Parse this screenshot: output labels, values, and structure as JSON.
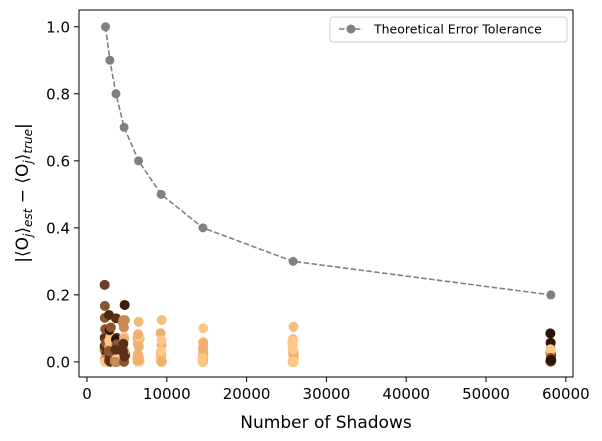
{
  "chart_data": {
    "type": "scatter",
    "title": "",
    "xlabel": "Number of Shadows",
    "ylabel": "|⟨O_j⟩_est − ⟨O_j⟩_true|",
    "xlim": [
      -1000,
      60900
    ],
    "ylim": [
      -0.045,
      1.05
    ],
    "xticks": [
      0,
      10000,
      20000,
      30000,
      40000,
      50000,
      60000
    ],
    "xtick_labels": [
      "0",
      "10000",
      "20000",
      "30000",
      "40000",
      "50000",
      "60000"
    ],
    "yticks": [
      0.0,
      0.2,
      0.4,
      0.6,
      0.8,
      1.0
    ],
    "ytick_labels": [
      "0.0",
      "0.2",
      "0.4",
      "0.6",
      "0.8",
      "1.0"
    ],
    "grid": false,
    "legend_position": "top-right",
    "series": [
      {
        "name": "Theoretical Error Tolerance",
        "style": "dashed-line-with-markers",
        "color": "#808080",
        "x": [
          2325,
          2870,
          3633,
          4650,
          6458,
          9300,
          14531,
          25833,
          58125
        ],
        "y": [
          1.0,
          0.9,
          0.8,
          0.7,
          0.6,
          0.5,
          0.4,
          0.3,
          0.2
        ]
      },
      {
        "name": "",
        "style": "scatter",
        "colormap": [
          "#2a1608",
          "#5a3018",
          "#8c5530",
          "#c88a54",
          "#f0b070",
          "#ffc888"
        ],
        "groups": [
          {
            "x": 2325,
            "max_error": 0.23,
            "top_color": "#6b3d24"
          },
          {
            "x": 2870,
            "max_error": 0.14,
            "top_color": "#4a2a14"
          },
          {
            "x": 3633,
            "max_error": 0.13,
            "top_color": "#5a3018"
          },
          {
            "x": 4650,
            "max_error": 0.17,
            "top_color": "#3a1e0c"
          },
          {
            "x": 6458,
            "max_error": 0.12,
            "top_color": "#f4b878"
          },
          {
            "x": 9300,
            "max_error": 0.125,
            "top_color": "#f8c080"
          },
          {
            "x": 14531,
            "max_error": 0.1,
            "top_color": "#fcc686"
          },
          {
            "x": 25833,
            "max_error": 0.105,
            "top_color": "#f6bc7c"
          },
          {
            "x": 58125,
            "max_error": 0.085,
            "top_color": "#2a1608"
          }
        ]
      }
    ]
  }
}
